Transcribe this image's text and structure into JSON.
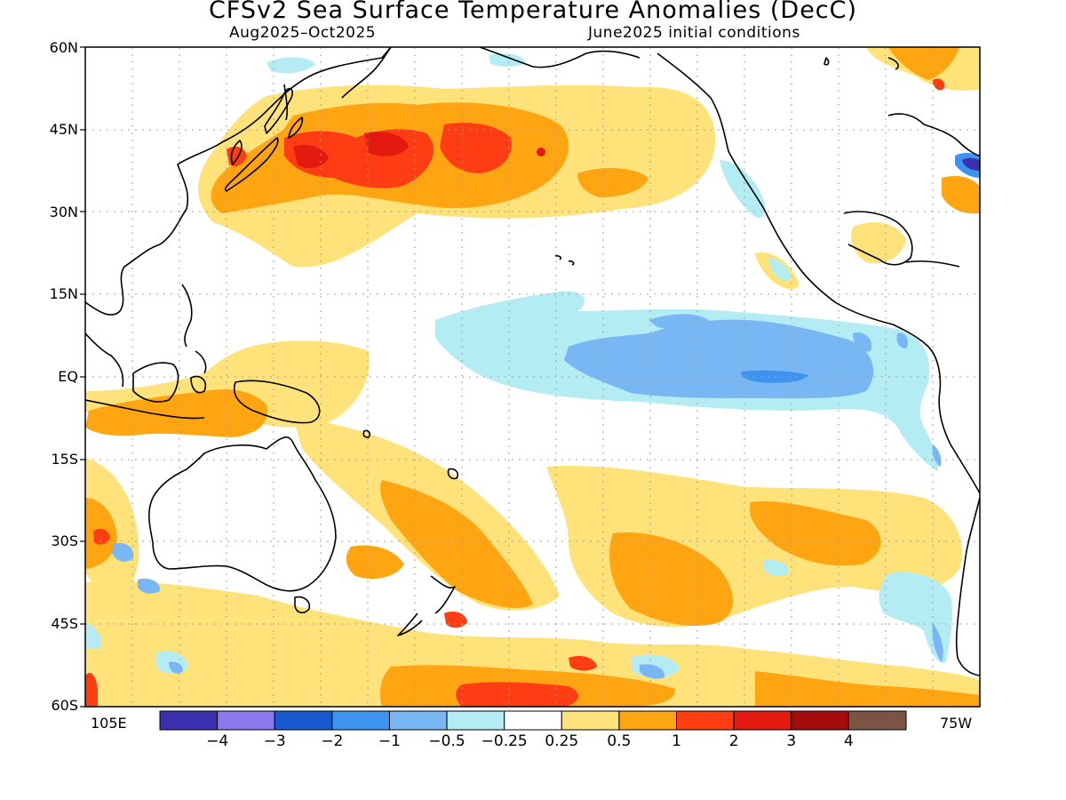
{
  "title": "CFSv2 Sea Surface Temperature Anomalies (DecC)",
  "subtitle_left": "Aug2025–Oct2025",
  "subtitle_right": "June2025 initial conditions",
  "lat_labels": [
    "60N",
    "45N",
    "30N",
    "15N",
    "EQ",
    "15S",
    "30S",
    "45S",
    "60S"
  ],
  "lon_left": "105E",
  "lon_right": "75W",
  "legend": {
    "colors": [
      "#3c2fb0",
      "#8a78ee",
      "#1a5ad0",
      "#3c94f0",
      "#78b6f4",
      "#b4ecf4",
      "#ffffff",
      "#ffe27a",
      "#ffa512",
      "#ff3d12",
      "#e41a10",
      "#a60c0c",
      "#7c5446"
    ],
    "tick_labels": [
      "−4",
      "−3",
      "−2",
      "−1",
      "−0.5",
      "−0.25",
      "0.25",
      "0.5",
      "1",
      "2",
      "3",
      "4"
    ]
  },
  "colors": {
    "land_outline": "#000000",
    "grid": "#a0a0a0"
  }
}
